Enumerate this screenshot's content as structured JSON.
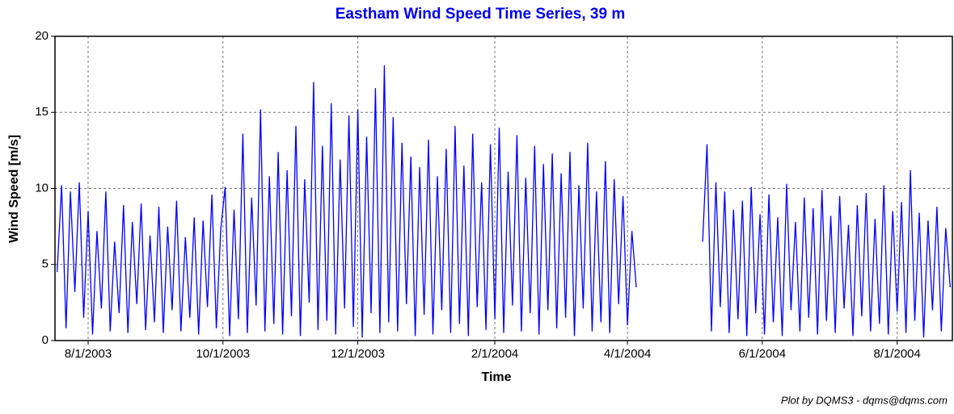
{
  "chart_data": {
    "type": "line",
    "title": "Eastham Wind Speed Time Series, 39 m",
    "x_label": "Time",
    "y_label": "Wind Speed [m/s]",
    "footer": "Plot by DQMS3 - dqms@dqms.com",
    "xlim": [
      "7/17/2003",
      "8/26/2004"
    ],
    "xticks": [
      "8/1/2003",
      "10/1/2003",
      "12/1/2003",
      "2/1/2004",
      "4/1/2004",
      "6/1/2004",
      "8/1/2004"
    ],
    "ylim": [
      0,
      20
    ],
    "yticks": [
      0,
      5,
      10,
      15,
      20
    ],
    "grid": true,
    "x": [
      "7/18/2003",
      "7/20/2003",
      "7/22/2003",
      "7/24/2003",
      "7/26/2003",
      "7/28/2003",
      "7/30/2003",
      "8/1/2003",
      "8/3/2003",
      "8/5/2003",
      "8/7/2003",
      "8/9/2003",
      "8/11/2003",
      "8/13/2003",
      "8/15/2003",
      "8/17/2003",
      "8/19/2003",
      "8/21/2003",
      "8/23/2003",
      "8/25/2003",
      "8/27/2003",
      "8/29/2003",
      "8/31/2003",
      "9/2/2003",
      "9/4/2003",
      "9/6/2003",
      "9/8/2003",
      "9/10/2003",
      "9/12/2003",
      "9/14/2003",
      "9/16/2003",
      "9/18/2003",
      "9/20/2003",
      "9/22/2003",
      "9/24/2003",
      "9/26/2003",
      "9/28/2003",
      "9/30/2003",
      "10/2/2003",
      "10/4/2003",
      "10/6/2003",
      "10/8/2003",
      "10/10/2003",
      "10/12/2003",
      "10/14/2003",
      "10/16/2003",
      "10/18/2003",
      "10/20/2003",
      "10/22/2003",
      "10/24/2003",
      "10/26/2003",
      "10/28/2003",
      "10/30/2003",
      "11/1/2003",
      "11/3/2003",
      "11/5/2003",
      "11/7/2003",
      "11/9/2003",
      "11/11/2003",
      "11/13/2003",
      "11/15/2003",
      "11/17/2003",
      "11/19/2003",
      "11/21/2003",
      "11/23/2003",
      "11/25/2003",
      "11/27/2003",
      "11/29/2003",
      "12/1/2003",
      "12/3/2003",
      "12/5/2003",
      "12/7/2003",
      "12/9/2003",
      "12/11/2003",
      "12/13/2003",
      "12/15/2003",
      "12/17/2003",
      "12/19/2003",
      "12/21/2003",
      "12/23/2003",
      "12/25/2003",
      "12/27/2003",
      "12/29/2003",
      "12/31/2003",
      "1/2/2004",
      "1/4/2004",
      "1/6/2004",
      "1/8/2004",
      "1/10/2004",
      "1/12/2004",
      "1/14/2004",
      "1/16/2004",
      "1/18/2004",
      "1/20/2004",
      "1/22/2004",
      "1/24/2004",
      "1/26/2004",
      "1/28/2004",
      "1/30/2004",
      "2/1/2004",
      "2/3/2004",
      "2/5/2004",
      "2/7/2004",
      "2/9/2004",
      "2/11/2004",
      "2/13/2004",
      "2/15/2004",
      "2/17/2004",
      "2/19/2004",
      "2/21/2004",
      "2/23/2004",
      "2/25/2004",
      "2/27/2004",
      "2/29/2004",
      "3/2/2004",
      "3/4/2004",
      "3/6/2004",
      "3/8/2004",
      "3/10/2004",
      "3/12/2004",
      "3/14/2004",
      "3/16/2004",
      "3/18/2004",
      "3/20/2004",
      "3/22/2004",
      "3/24/2004",
      "3/26/2004",
      "3/28/2004",
      "3/30/2004",
      "4/1/2004",
      "4/3/2004",
      "4/5/2004",
      "4/7/2004",
      "5/5/2004",
      "5/7/2004",
      "5/9/2004",
      "5/11/2004",
      "5/13/2004",
      "5/15/2004",
      "5/17/2004",
      "5/19/2004",
      "5/21/2004",
      "5/23/2004",
      "5/25/2004",
      "5/27/2004",
      "5/29/2004",
      "5/31/2004",
      "6/2/2004",
      "6/4/2004",
      "6/6/2004",
      "6/8/2004",
      "6/10/2004",
      "6/12/2004",
      "6/14/2004",
      "6/16/2004",
      "6/18/2004",
      "6/20/2004",
      "6/22/2004",
      "6/24/2004",
      "6/26/2004",
      "6/28/2004",
      "6/30/2004",
      "7/2/2004",
      "7/4/2004",
      "7/6/2004",
      "7/8/2004",
      "7/10/2004",
      "7/12/2004",
      "7/14/2004",
      "7/16/2004",
      "7/18/2004",
      "7/20/2004",
      "7/22/2004",
      "7/24/2004",
      "7/26/2004",
      "7/28/2004",
      "7/30/2004",
      "8/1/2004",
      "8/3/2004",
      "8/5/2004",
      "8/7/2004",
      "8/9/2004",
      "8/11/2004",
      "8/13/2004",
      "8/15/2004",
      "8/17/2004",
      "8/19/2004",
      "8/21/2004",
      "8/23/2004",
      "8/25/2004"
    ],
    "series": [
      {
        "color": "#0000ff",
        "values": [
          4.5,
          10.2,
          0.8,
          9.8,
          3.2,
          10.4,
          1.5,
          8.5,
          0.4,
          7.2,
          2.1,
          9.8,
          0.6,
          6.5,
          1.8,
          8.9,
          0.5,
          7.8,
          2.4,
          9.0,
          0.7,
          6.9,
          1.2,
          8.8,
          0.5,
          7.5,
          2.0,
          9.2,
          0.6,
          6.8,
          1.5,
          8.1,
          0.4,
          7.9,
          2.2,
          9.6,
          0.8,
          7.3,
          10.1,
          0.3,
          8.6,
          1.4,
          13.6,
          0.5,
          9.4,
          2.3,
          15.2,
          0.6,
          10.8,
          1.1,
          12.4,
          0.4,
          11.2,
          1.6,
          14.1,
          0.3,
          10.6,
          2.5,
          17.0,
          0.7,
          12.8,
          1.3,
          15.6,
          0.4,
          11.9,
          2.1,
          14.8,
          0.9,
          15.2,
          0.2,
          13.4,
          1.8,
          16.6,
          0.5,
          18.1,
          1.2,
          14.7,
          0.6,
          13.0,
          2.4,
          12.1,
          0.3,
          11.4,
          1.7,
          13.2,
          0.4,
          10.8,
          2.0,
          12.6,
          0.5,
          14.1,
          1.1,
          11.5,
          0.3,
          13.6,
          2.2,
          10.4,
          0.7,
          12.9,
          1.4,
          14.0,
          0.5,
          11.1,
          2.3,
          13.5,
          0.6,
          10.7,
          1.8,
          12.8,
          0.4,
          11.6,
          2.0,
          12.3,
          0.8,
          11.0,
          1.5,
          12.4,
          0.3,
          10.2,
          2.1,
          13.0,
          0.6,
          9.8,
          1.2,
          11.8,
          0.5,
          10.6,
          2.4,
          9.5,
          1.0,
          7.2,
          3.5,
          null,
          6.5,
          12.9,
          0.6,
          10.4,
          2.2,
          9.8,
          0.5,
          8.6,
          1.4,
          9.2,
          0.3,
          10.1,
          1.8,
          8.3,
          0.4,
          9.6,
          1.2,
          8.1,
          0.3,
          10.3,
          2.0,
          7.8,
          0.6,
          9.4,
          1.5,
          8.7,
          0.4,
          9.9,
          1.3,
          8.2,
          0.5,
          9.5,
          2.1,
          7.6,
          0.3,
          8.9,
          1.6,
          9.7,
          0.6,
          8.0,
          1.1,
          10.2,
          0.4,
          8.5,
          1.9,
          9.1,
          0.5,
          11.2,
          1.3,
          8.4,
          0.2,
          7.9,
          2.0,
          8.8,
          0.6,
          7.4,
          3.5
        ]
      }
    ]
  }
}
